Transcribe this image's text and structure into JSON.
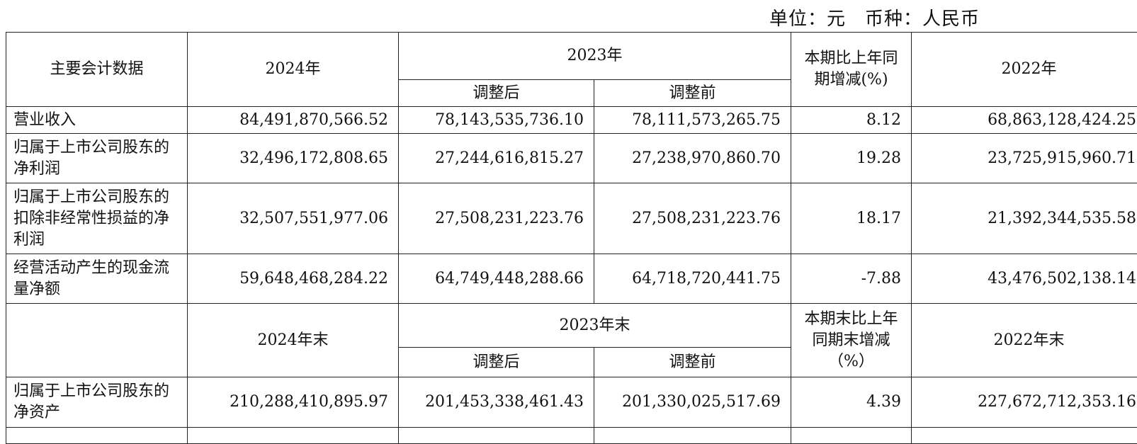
{
  "unit_line": "单位：元　币种：人民币",
  "header1": {
    "item": "主要会计数据",
    "y2024": "2024年",
    "y2023": "2023年",
    "adjusted": "调整后",
    "before": "调整前",
    "change": "本期比上年同期增减(%)",
    "y2022": "2022年"
  },
  "rows1": [
    {
      "label": "营业收入",
      "v2024": "84,491,870,566.52",
      "v2023a": "78,143,535,736.10",
      "v2023b": "78,111,573,265.75",
      "chg": "8.12",
      "v2022": "68,863,128,424.25"
    },
    {
      "label": "归属于上市公司股东的净利润",
      "v2024": "32,496,172,808.65",
      "v2023a": "27,244,616,815.27",
      "v2023b": "27,238,970,860.70",
      "chg": "19.28",
      "v2022": "23,725,915,960.71"
    },
    {
      "label": "归属于上市公司股东的扣除非经常性损益的净利润",
      "v2024": "32,507,551,977.06",
      "v2023a": "27,508,231,223.76",
      "v2023b": "27,508,231,223.76",
      "chg": "18.17",
      "v2022": "21,392,344,535.58"
    },
    {
      "label": "经营活动产生的现金流量净额",
      "v2024": "59,648,468,284.22",
      "v2023a": "64,749,448,288.66",
      "v2023b": "64,718,720,441.75",
      "chg": "-7.88",
      "v2022": "43,476,502,138.14"
    }
  ],
  "header2": {
    "y2024": "2024年末",
    "y2023": "2023年末",
    "adjusted": "调整后",
    "before": "调整前",
    "change": "本期末比上年同期末增减（%）",
    "y2022": "2022年末"
  },
  "rows2": [
    {
      "label": "归属于上市公司股东的净资产",
      "v2024": "210,288,410,895.97",
      "v2023a": "201,453,338,461.43",
      "v2023b": "201,330,025,517.69",
      "chg": "4.39",
      "v2022": "227,672,712,353.16"
    }
  ]
}
